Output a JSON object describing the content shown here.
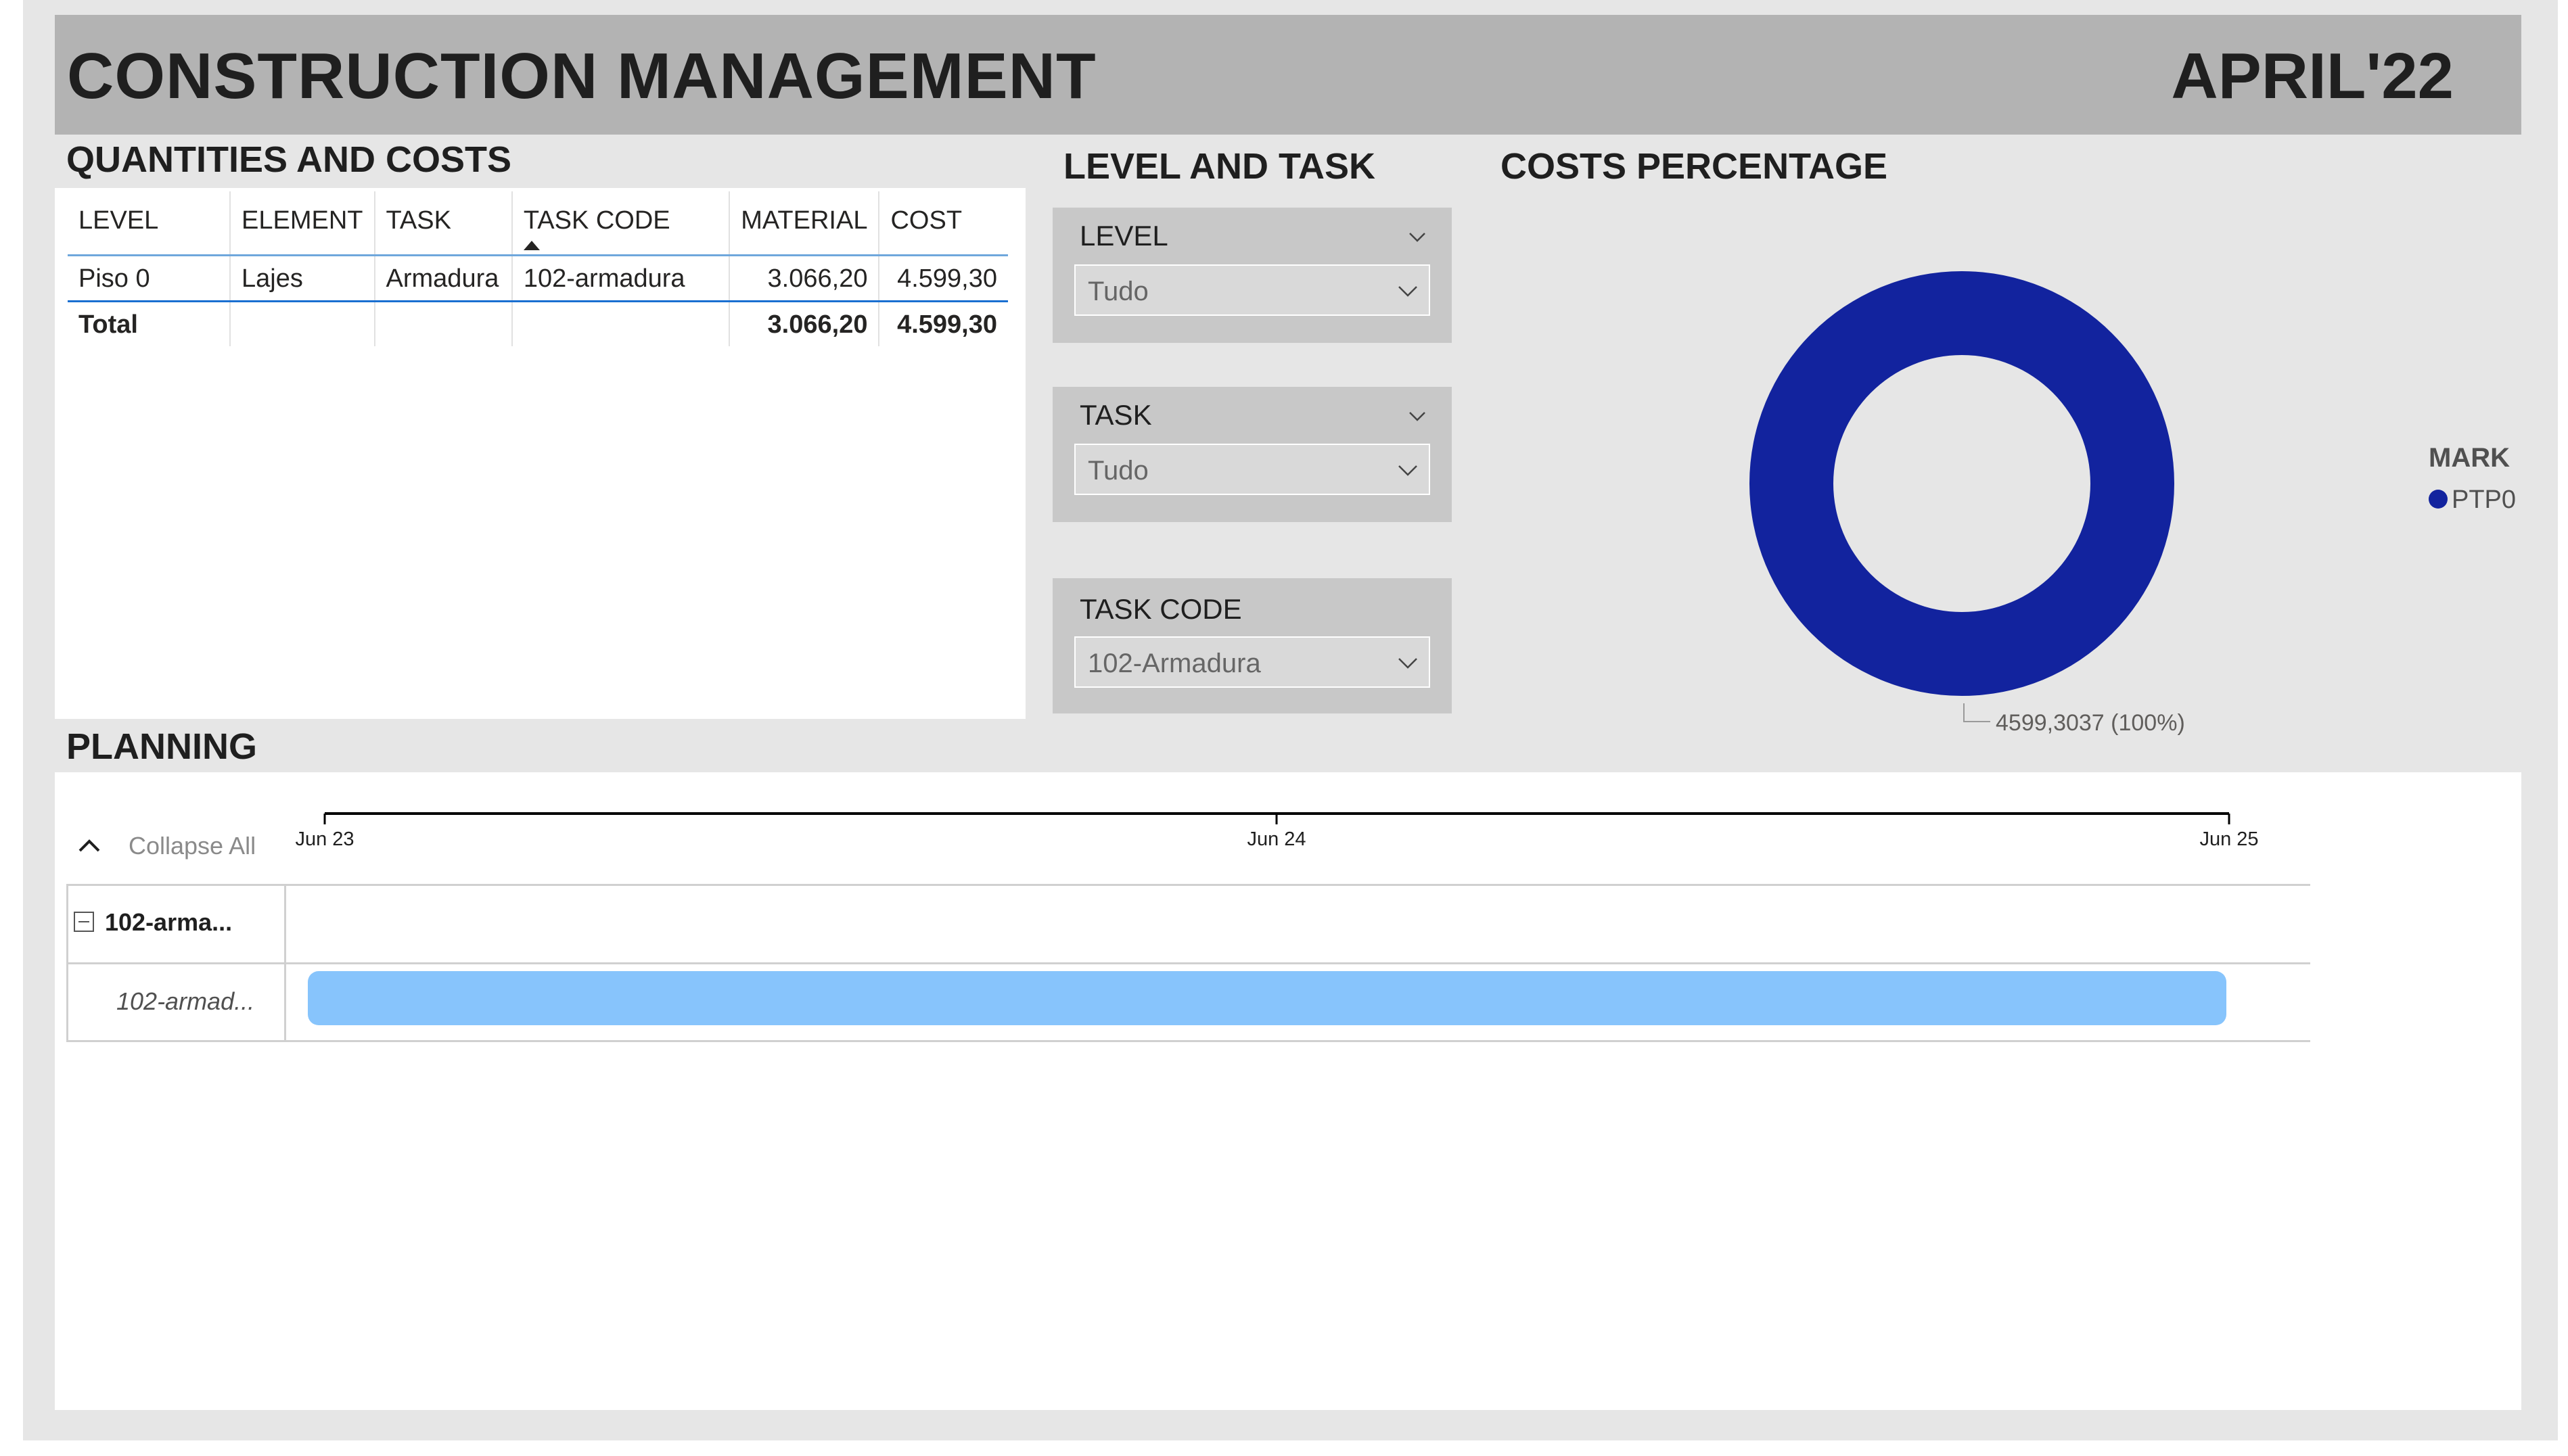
{
  "header": {
    "title": "CONSTRUCTION MANAGEMENT",
    "date": "APRIL'22"
  },
  "quantities": {
    "title": "QUANTITIES AND COSTS",
    "columns": [
      "LEVEL",
      "ELEMENT",
      "TASK",
      "TASK CODE",
      "MATERIAL",
      "COST"
    ],
    "sorted_column": "TASK CODE",
    "rows": [
      [
        "Piso 0",
        "Lajes",
        "Armadura",
        "102-armadura",
        "3.066,20",
        "4.599,30"
      ]
    ],
    "total": {
      "label": "Total",
      "material": "3.066,20",
      "cost": "4.599,30"
    }
  },
  "filters": {
    "title": "LEVEL AND TASK",
    "level": {
      "label": "LEVEL",
      "value": "Tudo"
    },
    "task": {
      "label": "TASK",
      "value": "Tudo"
    },
    "task_code": {
      "label": "TASK CODE",
      "value": "102-Armadura"
    }
  },
  "costs_chart": {
    "title": "COSTS PERCENTAGE",
    "legend_title": "MARK",
    "data_label": "4599,3037 (100%)",
    "accent_color": "#12239e"
  },
  "chart_data": {
    "type": "pie",
    "donut": true,
    "legend_title": "MARK",
    "legend_position": "right",
    "categories": [
      "PTP0"
    ],
    "values": [
      4599.3037
    ],
    "percentages": [
      100
    ],
    "colors": [
      "#12239e"
    ]
  },
  "planning": {
    "title": "PLANNING",
    "collapse_label": "Collapse All",
    "ticks": [
      "Jun 23",
      "Jun 24",
      "Jun 25"
    ],
    "group_label": "102-arma...",
    "task_label": "102-armad...",
    "task": {
      "start": "Jun 23",
      "end": "Jun 25"
    },
    "bar_color": "#87c4fc"
  }
}
